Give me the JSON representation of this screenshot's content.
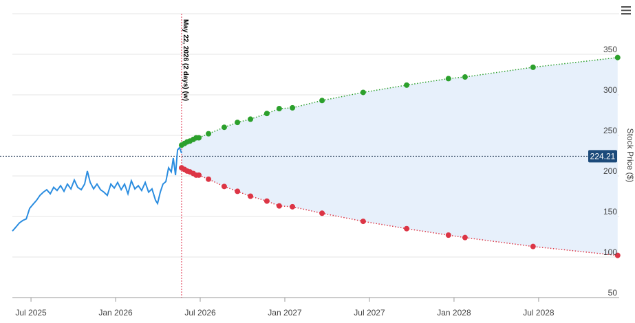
{
  "chart_data": {
    "type": "line",
    "y_label": "Stock Price ($)",
    "xlim": [
      2025.39,
      2028.976
    ],
    "xticks": [
      {
        "value": 2025.5,
        "label": "Jul 2025"
      },
      {
        "value": 2026.0,
        "label": "Jan 2026"
      },
      {
        "value": 2026.5,
        "label": "Jul 2026"
      },
      {
        "value": 2027.0,
        "label": "Jan 2027"
      },
      {
        "value": 2027.5,
        "label": "Jul 2027"
      },
      {
        "value": 2028.0,
        "label": "Jan 2028"
      },
      {
        "value": 2028.5,
        "label": "Jul 2028"
      }
    ],
    "ylim": [
      50,
      400
    ],
    "yticks": [
      50,
      100,
      150,
      200,
      250,
      300,
      350
    ],
    "grid": true,
    "current_price": 224.21,
    "vline": {
      "x": 2026.39,
      "label": "May 22, 2026 (2 days) (w)"
    },
    "band_color": "#e7f0fb",
    "series": [
      {
        "color": "#2b8de0",
        "line_style": "solid",
        "markers": false,
        "x": [
          2025.39,
          2025.411,
          2025.431,
          2025.451,
          2025.472,
          2025.492,
          2025.512,
          2025.533,
          2025.553,
          2025.573,
          2025.593,
          2025.614,
          2025.634,
          2025.654,
          2025.675,
          2025.695,
          2025.715,
          2025.736,
          2025.756,
          2025.776,
          2025.797,
          2025.817,
          2025.833,
          2025.85,
          2025.87,
          2025.89,
          2025.911,
          2025.931,
          2025.951,
          2025.972,
          2025.992,
          2026.012,
          2026.033,
          2026.053,
          2026.073,
          2026.093,
          2026.114,
          2026.134,
          2026.154,
          2026.175,
          2026.195,
          2026.215,
          2026.236,
          2026.248,
          2026.264,
          2026.28,
          2026.297,
          2026.313,
          2026.329,
          2026.341,
          2026.354,
          2026.366,
          2026.378,
          2026.39
        ],
        "values": [
          132,
          137,
          142,
          145,
          147,
          160,
          165,
          170,
          176,
          180,
          183,
          178,
          186,
          182,
          188,
          181,
          190,
          184,
          195,
          186,
          183,
          190,
          206,
          192,
          184,
          190,
          183,
          180,
          176,
          190,
          185,
          192,
          183,
          190,
          178,
          194,
          184,
          188,
          182,
          192,
          180,
          184,
          170,
          166,
          180,
          190,
          193,
          210,
          205,
          222,
          201,
          232,
          235,
          228
        ]
      },
      {
        "color": "#2ca02c",
        "line_style": "dotted",
        "markers": true,
        "x": [
          2026.39,
          2026.407,
          2026.423,
          2026.439,
          2026.459,
          2026.476,
          2026.492,
          2026.549,
          2026.642,
          2026.72,
          2026.797,
          2026.894,
          2026.967,
          2027.045,
          2027.22,
          2027.463,
          2027.72,
          2027.967,
          2028.065,
          2028.467,
          2028.967
        ],
        "values": [
          238,
          240,
          242,
          243,
          245,
          247,
          247,
          252,
          260,
          266,
          270,
          277,
          283,
          284,
          293,
          303,
          312,
          320,
          322,
          334,
          346
        ]
      },
      {
        "color": "#dc3545",
        "line_style": "dotted",
        "markers": true,
        "x": [
          2026.39,
          2026.407,
          2026.423,
          2026.439,
          2026.459,
          2026.476,
          2026.492,
          2026.549,
          2026.642,
          2026.72,
          2026.797,
          2026.894,
          2026.967,
          2027.045,
          2027.22,
          2027.463,
          2027.72,
          2027.967,
          2028.065,
          2028.467,
          2028.967
        ],
        "values": [
          210,
          208,
          206,
          205,
          203,
          201,
          201,
          196,
          187,
          181,
          175,
          169,
          163,
          162,
          154,
          144,
          135,
          127,
          124,
          113,
          102
        ]
      }
    ]
  }
}
